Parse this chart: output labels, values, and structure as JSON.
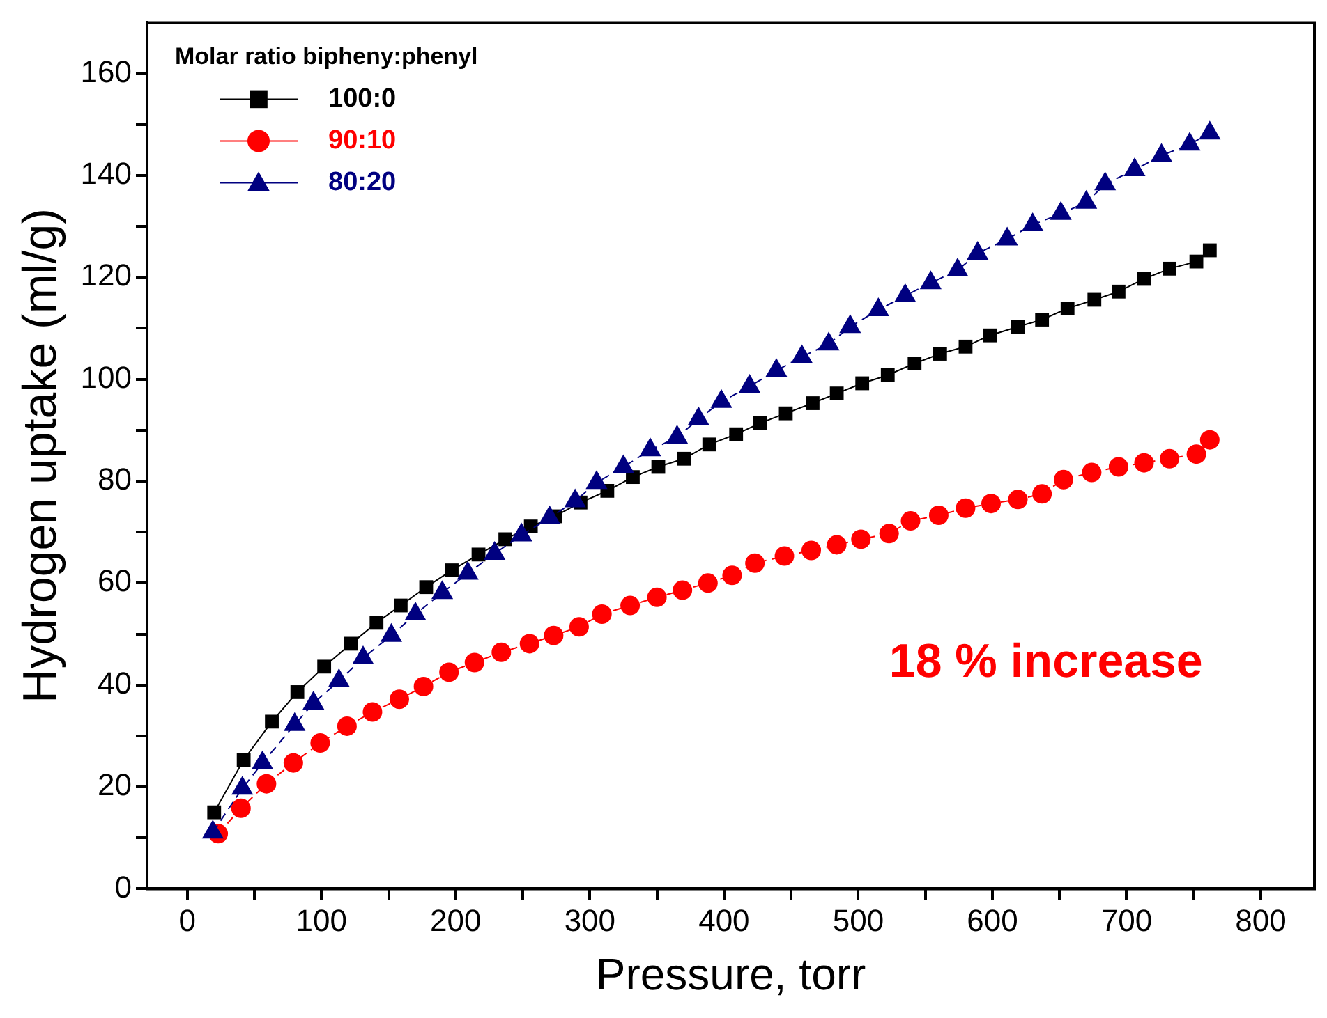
{
  "chart_data": {
    "type": "line",
    "xlabel": "Pressure, torr",
    "ylabel": "Hydrogen uptake (ml/g)",
    "legend_title": "Molar ratio bipheny:phenyl",
    "legend": "top left",
    "grid": false,
    "xlim": [
      -30,
      840
    ],
    "ylim": [
      0,
      170
    ],
    "xticks": [
      0,
      {
        "value": 50,
        "label": null
      },
      100,
      {
        "value": 150,
        "label": null
      },
      200,
      {
        "value": 250,
        "label": null
      },
      300,
      {
        "value": 350,
        "label": null
      },
      400,
      {
        "value": 450,
        "label": null
      },
      500,
      {
        "value": 550,
        "label": null
      },
      600,
      {
        "value": 650,
        "label": null
      },
      700,
      {
        "value": 750,
        "label": null
      },
      800
    ],
    "yticks": [
      0,
      {
        "value": 10,
        "label": null
      },
      20,
      {
        "value": 30,
        "label": null
      },
      40,
      {
        "value": 50,
        "label": null
      },
      60,
      {
        "value": 70,
        "label": null
      },
      80,
      {
        "value": 90,
        "label": null
      },
      100,
      {
        "value": 110,
        "label": null
      },
      120,
      {
        "value": 130,
        "label": null
      },
      140,
      {
        "value": 150,
        "label": null
      },
      160
    ],
    "annotations": [
      "18 % increase"
    ],
    "series": [
      {
        "name": "100:0",
        "color": "#000000",
        "marker": "square",
        "line_style": "solid",
        "x": [
          20,
          42,
          63,
          82,
          102,
          122,
          141,
          159,
          178,
          197,
          217,
          237,
          256,
          274,
          293,
          313,
          332,
          351,
          370,
          389,
          409,
          427,
          446,
          466,
          484,
          503,
          522,
          542,
          561,
          580,
          598,
          619,
          637,
          656,
          676,
          694,
          713,
          732,
          752,
          762
        ],
        "values": [
          15,
          25.3,
          32.8,
          38.6,
          43.6,
          48.1,
          52.2,
          55.6,
          59.2,
          62.5,
          65.6,
          68.6,
          71.1,
          73.1,
          75.8,
          78.1,
          80.8,
          82.8,
          84.4,
          87.2,
          89.2,
          91.4,
          93.3,
          95.3,
          97.2,
          99.2,
          100.8,
          103.1,
          105,
          106.4,
          108.6,
          110.3,
          111.7,
          113.9,
          115.6,
          117.2,
          119.7,
          121.7,
          123.1,
          125.3
        ]
      },
      {
        "name": "90:10",
        "color": "#ff0000",
        "marker": "circle",
        "line_style": "dashed",
        "x": [
          23,
          40,
          59,
          79,
          99,
          119,
          138,
          158,
          176,
          195,
          214,
          234,
          255,
          273,
          292,
          309,
          330,
          350,
          369,
          388,
          406,
          423,
          445,
          465,
          484,
          502,
          523,
          539,
          560,
          580,
          599,
          619,
          637,
          653,
          674,
          694,
          713,
          732,
          752,
          762
        ],
        "values": [
          10.8,
          15.8,
          20.6,
          24.7,
          28.6,
          31.9,
          34.7,
          37.2,
          39.7,
          42.5,
          44.4,
          46.4,
          48.1,
          49.7,
          51.4,
          53.9,
          55.6,
          57.2,
          58.6,
          60,
          61.5,
          63.9,
          65.3,
          66.4,
          67.5,
          68.6,
          69.7,
          72.2,
          73.3,
          74.7,
          75.6,
          76.4,
          77.5,
          80.3,
          81.7,
          82.8,
          83.6,
          84.4,
          85.3,
          88.1
        ]
      },
      {
        "name": "80:20",
        "color": "#000080",
        "marker": "triangle",
        "line_style": "dashed",
        "x": [
          19,
          41,
          56,
          80,
          94,
          113,
          131,
          152,
          170,
          190,
          209,
          229,
          249,
          270,
          289,
          305,
          325,
          345,
          365,
          381,
          398,
          419,
          439,
          458,
          478,
          494,
          515,
          535,
          554,
          574,
          589,
          611,
          630,
          651,
          670,
          684,
          706,
          726,
          747,
          762
        ],
        "values": [
          11.1,
          19.7,
          24.7,
          32.2,
          36.4,
          40.8,
          45.3,
          49.7,
          53.9,
          58.1,
          61.9,
          65.8,
          69.4,
          72.8,
          76.1,
          79.7,
          82.8,
          86.1,
          88.6,
          92.2,
          95.6,
          98.6,
          101.7,
          104.4,
          106.9,
          110.3,
          113.6,
          116.4,
          118.9,
          121.4,
          124.7,
          127.5,
          130.3,
          132.5,
          134.7,
          138.3,
          141.1,
          143.9,
          146.1,
          148.3
        ]
      }
    ]
  }
}
